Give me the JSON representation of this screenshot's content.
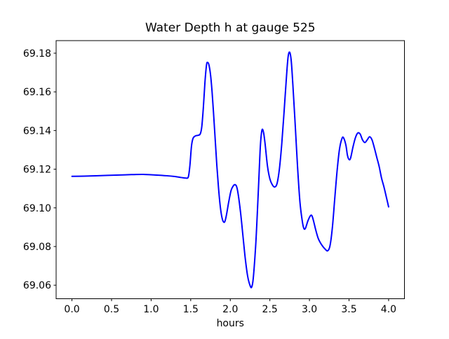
{
  "chart_data": {
    "type": "line",
    "title": "Water Depth h at gauge 525",
    "xlabel": "hours",
    "ylabel": "",
    "grid": false,
    "legend": "none",
    "line_color": "#0000ff",
    "xlim": [
      -0.2,
      4.2
    ],
    "ylim": [
      69.053,
      69.1865
    ],
    "x_tick_values": [
      0,
      0.5,
      1,
      1.5,
      2,
      2.5,
      3,
      3.5,
      4
    ],
    "x_tick_labels": [
      "0.0",
      "0.5",
      "1.0",
      "1.5",
      "2.0",
      "2.5",
      "3.0",
      "3.5",
      "4.0"
    ],
    "y_tick_values": [
      69.06,
      69.08,
      69.1,
      69.12,
      69.14,
      69.16,
      69.18
    ],
    "y_tick_labels": [
      "69.06",
      "69.08",
      "69.10",
      "69.12",
      "69.14",
      "69.16",
      "69.18"
    ],
    "series": [
      {
        "name": "water depth h",
        "x": [
          0.0,
          0.15,
          0.3,
          0.45,
          0.6,
          0.75,
          0.9,
          1.05,
          1.2,
          1.3,
          1.38,
          1.44,
          1.47,
          1.49,
          1.51,
          1.53,
          1.56,
          1.59,
          1.62,
          1.64,
          1.66,
          1.68,
          1.7,
          1.715,
          1.73,
          1.75,
          1.77,
          1.79,
          1.81,
          1.83,
          1.85,
          1.87,
          1.89,
          1.91,
          1.93,
          1.95,
          1.98,
          2.01,
          2.04,
          2.06,
          2.08,
          2.1,
          2.13,
          2.16,
          2.19,
          2.22,
          2.25,
          2.27,
          2.29,
          2.32,
          2.34,
          2.36,
          2.38,
          2.4,
          2.42,
          2.44,
          2.47,
          2.5,
          2.53,
          2.56,
          2.59,
          2.62,
          2.65,
          2.68,
          2.71,
          2.73,
          2.75,
          2.77,
          2.79,
          2.82,
          2.85,
          2.88,
          2.91,
          2.93,
          2.95,
          2.98,
          3.01,
          3.03,
          3.05,
          3.08,
          3.11,
          3.14,
          3.17,
          3.2,
          3.23,
          3.26,
          3.29,
          3.32,
          3.35,
          3.38,
          3.41,
          3.43,
          3.46,
          3.48,
          3.5,
          3.52,
          3.55,
          3.58,
          3.61,
          3.64,
          3.67,
          3.7,
          3.73,
          3.76,
          3.79,
          3.82,
          3.85,
          3.88,
          3.91,
          3.94,
          3.97,
          4.0
        ],
        "y": [
          69.1163,
          69.1164,
          69.1166,
          69.1168,
          69.117,
          69.1172,
          69.1173,
          69.117,
          69.1166,
          69.1162,
          69.1157,
          69.1154,
          69.116,
          69.122,
          69.132,
          69.136,
          69.1372,
          69.1375,
          69.1382,
          69.142,
          69.152,
          69.165,
          69.174,
          69.1752,
          69.174,
          69.169,
          69.16,
          69.148,
          69.135,
          69.122,
          69.111,
          69.102,
          69.096,
          69.093,
          69.0928,
          69.096,
          69.103,
          69.109,
          69.1115,
          69.112,
          69.111,
          69.107,
          69.0975,
          69.0855,
          69.0735,
          69.0645,
          69.0598,
          69.059,
          69.0635,
          69.08,
          69.096,
          69.114,
          69.132,
          69.1402,
          69.139,
          69.133,
          69.1215,
          69.115,
          69.112,
          69.1108,
          69.1125,
          69.12,
          69.133,
          69.15,
          69.168,
          69.178,
          69.1805,
          69.176,
          69.164,
          69.143,
          69.121,
          69.103,
          69.093,
          69.0893,
          69.0895,
          69.0932,
          69.0958,
          69.096,
          69.0935,
          69.0885,
          69.0843,
          69.0818,
          69.08,
          69.0786,
          69.0778,
          69.0805,
          69.09,
          69.105,
          69.1195,
          69.1305,
          69.1358,
          69.1363,
          69.1325,
          69.1272,
          69.125,
          69.1258,
          69.1315,
          69.1362,
          69.1387,
          69.1382,
          69.1352,
          69.1338,
          69.1352,
          69.1368,
          69.1352,
          69.131,
          69.1262,
          69.1215,
          69.1155,
          69.111,
          69.1058,
          69.1005
        ]
      }
    ]
  },
  "colors": {
    "line": "#0000ff",
    "text": "#000000",
    "axes": "#000000",
    "background": "#ffffff"
  }
}
